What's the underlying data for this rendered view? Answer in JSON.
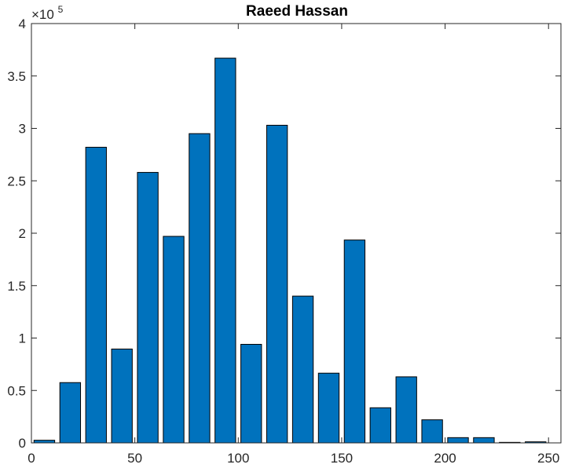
{
  "chart_data": {
    "type": "bar",
    "title": "Raeed Hassan",
    "xlabel": "",
    "ylabel": "",
    "exponent_label": {
      "base": "×10",
      "power": "5"
    },
    "x": [
      6.25,
      18.75,
      31.25,
      43.75,
      56.25,
      68.75,
      81.25,
      93.75,
      106.25,
      118.75,
      131.25,
      143.75,
      156.25,
      168.75,
      181.25,
      193.75,
      206.25,
      218.75,
      231.25,
      243.75
    ],
    "values": [
      2500,
      57500,
      282000,
      89500,
      258000,
      197000,
      295000,
      367000,
      94000,
      303000,
      140000,
      66500,
      193500,
      33500,
      63000,
      22000,
      5000,
      5000,
      500,
      1000
    ],
    "bar_width_fraction": 0.8,
    "xlim": [
      0,
      256
    ],
    "ylim": [
      0,
      400000
    ],
    "x_ticks": [
      0,
      50,
      100,
      150,
      200,
      250
    ],
    "x_tick_labels": [
      "0",
      "50",
      "100",
      "150",
      "200",
      "250"
    ],
    "y_ticks": [
      0,
      50000,
      100000,
      150000,
      200000,
      250000,
      300000,
      350000,
      400000
    ],
    "y_tick_labels": [
      "0",
      "0.5",
      "1",
      "1.5",
      "2",
      "2.5",
      "3",
      "3.5",
      "4"
    ],
    "grid": false,
    "colors": {
      "bar_fill": "#0072BD",
      "bar_edge": "#000000",
      "axis": "#262626",
      "background": "#ffffff"
    }
  }
}
